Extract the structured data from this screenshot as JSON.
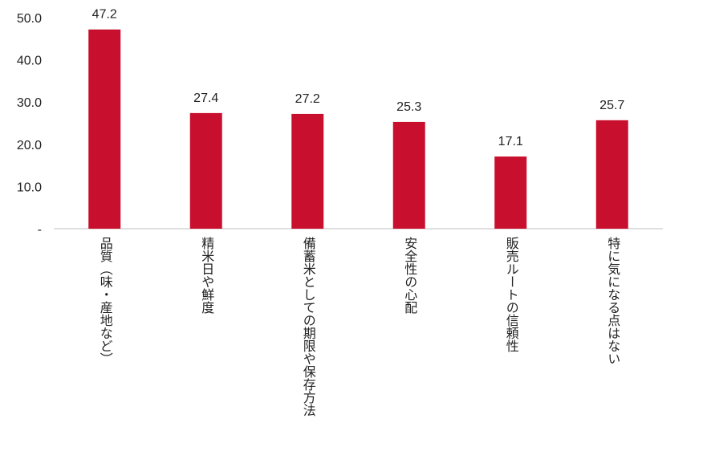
{
  "chart_data": {
    "type": "bar",
    "categories": [
      "品質（味・産地など）",
      "精米日や鮮度",
      "備蓄米としての期限や保存方法",
      "安全性の心配",
      "販売ルートの信頼性",
      "特に気になる点はない"
    ],
    "values": [
      47.2,
      27.4,
      27.2,
      25.3,
      17.1,
      25.7
    ],
    "color": "#c8102e",
    "ylim": [
      0,
      50
    ],
    "yticks": [
      {
        "value": 0,
        "label": "-"
      },
      {
        "value": 10,
        "label": "10.0"
      },
      {
        "value": 20,
        "label": "20.0"
      },
      {
        "value": 30,
        "label": "30.0"
      },
      {
        "value": 40,
        "label": "40.0"
      },
      {
        "value": 50,
        "label": "50.0"
      }
    ],
    "grid": false
  }
}
